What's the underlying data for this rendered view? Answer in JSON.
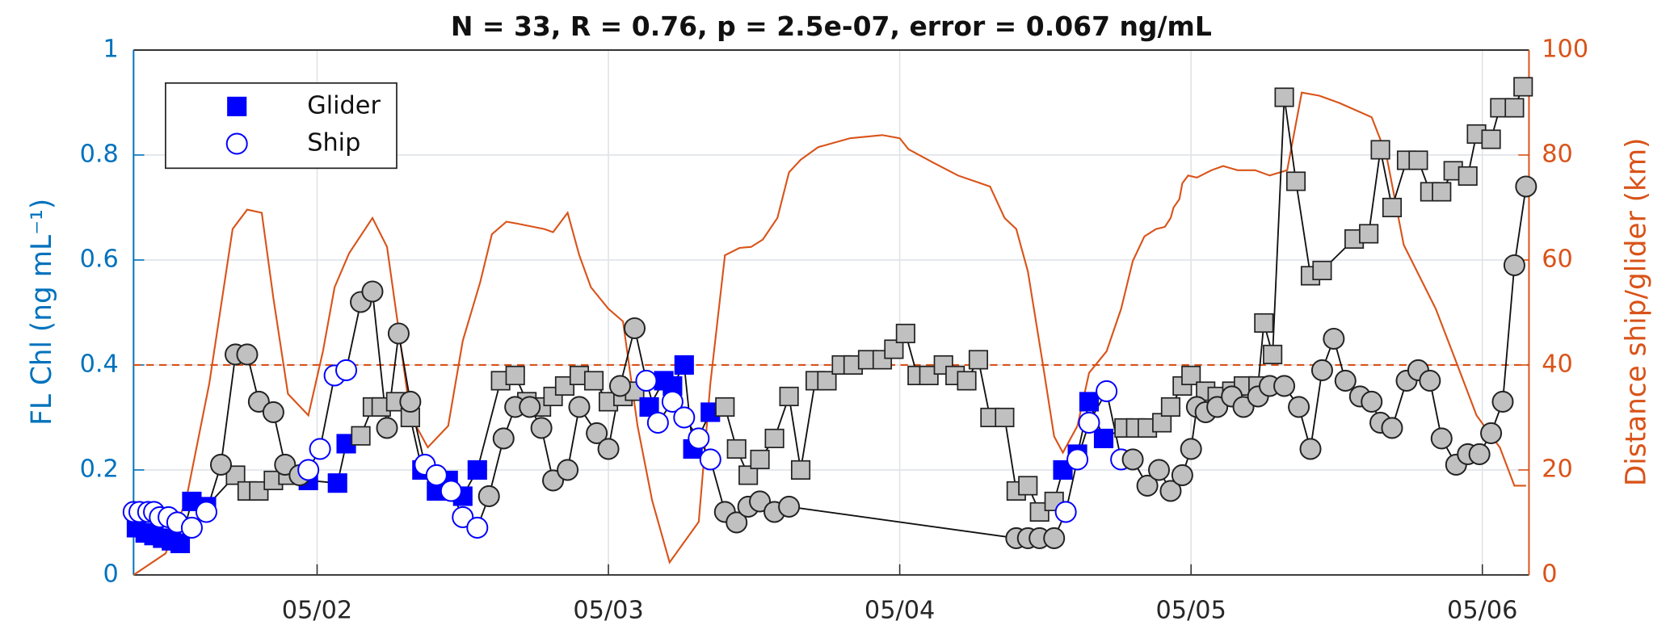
{
  "chart_data": {
    "type": "scatter",
    "title": "N = 33, R = 0.76, p = 2.5e-07, error = 0.067 ng/mL",
    "ylabel": "FL Chl (ng mL⁻¹)",
    "y2label": "Distance ship/glider (km)",
    "xlim": [
      1.37,
      6.16
    ],
    "xticks": [
      {
        "value": 2,
        "label": "05/02"
      },
      {
        "value": 3,
        "label": "05/03"
      },
      {
        "value": 4,
        "label": "05/04"
      },
      {
        "value": 5,
        "label": "05/05"
      },
      {
        "value": 6,
        "label": "05/06"
      }
    ],
    "ylim": [
      0,
      1
    ],
    "yticks": [
      0,
      0.2,
      0.4,
      0.6,
      0.8,
      1
    ],
    "y2lim": [
      0,
      100
    ],
    "y2ticks": [
      0,
      20,
      40,
      60,
      80,
      100
    ],
    "grid": true,
    "legend": "upper left",
    "reference_line": {
      "axis": "y2",
      "value": 40,
      "color": "#d95319",
      "dashed": true
    },
    "series": [
      {
        "name": "Glider",
        "color": "#0000ff",
        "marker": "square",
        "x": [
          1.38,
          1.41,
          1.44,
          1.47,
          1.5,
          1.53,
          1.57,
          1.62,
          1.72,
          1.76,
          1.8,
          1.85,
          1.9,
          1.97,
          2.07,
          2.1,
          2.15,
          2.19,
          2.22,
          2.27,
          2.32,
          2.36,
          2.41,
          2.45,
          2.5,
          2.55,
          2.63,
          2.68,
          2.72,
          2.77,
          2.81,
          2.85,
          2.9,
          2.95,
          3.0,
          3.05,
          3.09,
          3.14,
          3.19,
          3.22,
          3.26,
          3.29,
          3.35,
          3.4,
          3.44,
          3.48,
          3.52,
          3.57,
          3.62,
          3.66,
          3.71,
          3.75,
          3.8,
          3.84,
          3.89,
          3.94,
          3.98,
          4.02,
          4.06,
          4.1,
          4.15,
          4.19,
          4.23,
          4.27,
          4.31,
          4.36,
          4.4,
          4.44,
          4.48,
          4.53,
          4.56,
          4.61,
          4.65,
          4.7,
          4.77,
          4.81,
          4.85,
          4.9,
          4.93,
          4.97,
          5.0,
          5.05,
          5.09,
          5.14,
          5.18,
          5.23,
          5.25,
          5.28,
          5.32,
          5.36,
          5.41,
          5.45,
          5.56,
          5.61,
          5.65,
          5.69,
          5.74,
          5.78,
          5.82,
          5.86,
          5.9,
          5.95,
          5.98,
          6.03,
          6.06,
          6.11,
          6.14
        ],
        "values": [
          0.09,
          0.08,
          0.075,
          0.07,
          0.065,
          0.06,
          0.14,
          0.13,
          0.19,
          0.16,
          0.16,
          0.18,
          0.19,
          0.18,
          0.175,
          0.25,
          0.265,
          0.32,
          0.32,
          0.33,
          0.3,
          0.2,
          0.16,
          0.18,
          0.15,
          0.2,
          0.37,
          0.38,
          0.33,
          0.32,
          0.34,
          0.36,
          0.38,
          0.37,
          0.33,
          0.34,
          0.35,
          0.32,
          0.37,
          0.36,
          0.4,
          0.24,
          0.31,
          0.32,
          0.24,
          0.19,
          0.22,
          0.26,
          0.34,
          0.2,
          0.37,
          0.37,
          0.4,
          0.4,
          0.41,
          0.41,
          0.43,
          0.46,
          0.38,
          0.38,
          0.4,
          0.38,
          0.37,
          0.41,
          0.3,
          0.3,
          0.16,
          0.17,
          0.12,
          0.14,
          0.2,
          0.23,
          0.33,
          0.26,
          0.28,
          0.28,
          0.28,
          0.29,
          0.32,
          0.36,
          0.38,
          0.35,
          0.34,
          0.35,
          0.36,
          0.36,
          0.48,
          0.42,
          0.91,
          0.75,
          0.57,
          0.58,
          0.64,
          0.65,
          0.81,
          0.7,
          0.79,
          0.79,
          0.73,
          0.73,
          0.77,
          0.76,
          0.84,
          0.83,
          0.89,
          0.89,
          0.93
        ],
        "matched": [
          true,
          true,
          true,
          true,
          true,
          true,
          true,
          true,
          false,
          false,
          false,
          false,
          false,
          true,
          true,
          true,
          false,
          false,
          false,
          false,
          false,
          true,
          true,
          true,
          true,
          true,
          false,
          false,
          false,
          false,
          false,
          false,
          false,
          false,
          false,
          false,
          false,
          true,
          true,
          true,
          true,
          true,
          true,
          false,
          false,
          false,
          false,
          false,
          false,
          false,
          false,
          false,
          false,
          false,
          false,
          false,
          false,
          false,
          false,
          false,
          false,
          false,
          false,
          false,
          false,
          false,
          false,
          false,
          false,
          false,
          true,
          true,
          true,
          true,
          false,
          false,
          false,
          false,
          false,
          false,
          false,
          false,
          false,
          false,
          false,
          false,
          false,
          false,
          false,
          false,
          false,
          false,
          false,
          false,
          false,
          false,
          false,
          false,
          false,
          false,
          false,
          false,
          false,
          false,
          false,
          false,
          false
        ]
      },
      {
        "name": "Ship",
        "color": "#0000ff",
        "marker": "circle",
        "x": [
          1.37,
          1.39,
          1.42,
          1.44,
          1.46,
          1.49,
          1.52,
          1.57,
          1.62,
          1.67,
          1.72,
          1.76,
          1.8,
          1.85,
          1.89,
          1.94,
          1.97,
          2.01,
          2.06,
          2.1,
          2.15,
          2.19,
          2.24,
          2.28,
          2.32,
          2.37,
          2.41,
          2.46,
          2.5,
          2.55,
          2.59,
          2.64,
          2.68,
          2.73,
          2.77,
          2.81,
          2.86,
          2.9,
          2.96,
          3.0,
          3.04,
          3.09,
          3.13,
          3.17,
          3.22,
          3.26,
          3.31,
          3.35,
          3.4,
          3.44,
          3.48,
          3.52,
          3.57,
          3.62,
          4.4,
          4.44,
          4.48,
          4.53,
          4.57,
          4.61,
          4.65,
          4.71,
          4.76,
          4.8,
          4.85,
          4.89,
          4.93,
          4.97,
          5.0,
          5.02,
          5.05,
          5.09,
          5.14,
          5.18,
          5.23,
          5.27,
          5.32,
          5.37,
          5.41,
          5.45,
          5.49,
          5.53,
          5.58,
          5.62,
          5.65,
          5.69,
          5.74,
          5.78,
          5.82,
          5.86,
          5.91,
          5.95,
          5.99,
          6.03,
          6.07,
          6.11,
          6.15
        ],
        "values": [
          0.12,
          0.12,
          0.12,
          0.12,
          0.11,
          0.11,
          0.1,
          0.09,
          0.12,
          0.21,
          0.42,
          0.42,
          0.33,
          0.31,
          0.21,
          0.19,
          0.2,
          0.24,
          0.38,
          0.39,
          0.52,
          0.54,
          0.28,
          0.46,
          0.33,
          0.21,
          0.19,
          0.16,
          0.11,
          0.09,
          0.15,
          0.26,
          0.32,
          0.32,
          0.28,
          0.18,
          0.2,
          0.32,
          0.27,
          0.24,
          0.36,
          0.47,
          0.37,
          0.29,
          0.33,
          0.3,
          0.26,
          0.22,
          0.12,
          0.1,
          0.13,
          0.14,
          0.12,
          0.13,
          0.07,
          0.07,
          0.07,
          0.07,
          0.12,
          0.22,
          0.29,
          0.35,
          0.22,
          0.22,
          0.17,
          0.2,
          0.16,
          0.19,
          0.24,
          0.32,
          0.31,
          0.32,
          0.34,
          0.32,
          0.34,
          0.36,
          0.36,
          0.32,
          0.24,
          0.39,
          0.45,
          0.37,
          0.34,
          0.33,
          0.29,
          0.28,
          0.37,
          0.39,
          0.37,
          0.26,
          0.21,
          0.23,
          0.23,
          0.27,
          0.33,
          0.59,
          0.74
        ],
        "matched": [
          true,
          true,
          true,
          true,
          true,
          true,
          true,
          true,
          true,
          false,
          false,
          false,
          false,
          false,
          false,
          false,
          true,
          true,
          true,
          true,
          false,
          false,
          false,
          false,
          false,
          true,
          true,
          true,
          true,
          true,
          false,
          false,
          false,
          false,
          false,
          false,
          false,
          false,
          false,
          false,
          false,
          false,
          true,
          true,
          true,
          true,
          true,
          true,
          false,
          false,
          false,
          false,
          false,
          false,
          false,
          false,
          false,
          false,
          true,
          true,
          true,
          true,
          true,
          false,
          false,
          false,
          false,
          false,
          false,
          false,
          false,
          false,
          false,
          false,
          false,
          false,
          false,
          false,
          false,
          false,
          false,
          false,
          false,
          false,
          false,
          false,
          false,
          false,
          false,
          false,
          false,
          false,
          false,
          false,
          false,
          false,
          false
        ]
      },
      {
        "color": "#d95319",
        "axis": "y2",
        "marker": "none",
        "x": [
          1.37,
          1.48,
          1.55,
          1.63,
          1.71,
          1.76,
          1.81,
          1.85,
          1.9,
          1.97,
          2.02,
          2.06,
          2.11,
          2.19,
          2.24,
          2.28,
          2.32,
          2.38,
          2.45,
          2.5,
          2.56,
          2.6,
          2.65,
          2.69,
          2.78,
          2.81,
          2.86,
          2.9,
          2.94,
          3.0,
          3.05,
          3.1,
          3.15,
          3.21,
          3.31,
          3.35,
          3.4,
          3.45,
          3.49,
          3.53,
          3.58,
          3.62,
          3.66,
          3.72,
          3.83,
          3.94,
          4.0,
          4.03,
          4.11,
          4.2,
          4.31,
          4.36,
          4.4,
          4.44,
          4.49,
          4.53,
          4.56,
          4.61,
          4.65,
          4.71,
          4.76,
          4.8,
          4.84,
          4.88,
          4.91,
          4.93,
          4.94,
          4.96,
          4.97,
          4.99,
          5.02,
          5.07,
          5.11,
          5.16,
          5.22,
          5.27,
          5.33,
          5.38,
          5.44,
          5.51,
          5.62,
          5.67,
          5.73,
          5.84,
          5.91,
          5.98,
          6.06,
          6.11,
          6.15
        ],
        "values": [
          0,
          4.1,
          14.2,
          36.5,
          65.9,
          69.6,
          69.0,
          52.7,
          34.5,
          30.4,
          42.6,
          54.8,
          61.3,
          68.0,
          62.5,
          46.7,
          30.4,
          24.3,
          28.4,
          44.6,
          55.8,
          64.9,
          67.3,
          66.9,
          65.9,
          65.3,
          69.0,
          60.9,
          54.8,
          50.7,
          48.3,
          28.4,
          14.2,
          2.4,
          10.1,
          36.5,
          60.9,
          62.3,
          62.5,
          63.9,
          68.0,
          76.7,
          79.1,
          81.5,
          83.2,
          83.8,
          83.2,
          81.1,
          78.7,
          76.1,
          74.0,
          68.0,
          65.9,
          57.8,
          40.6,
          26.4,
          23.3,
          28.4,
          38.5,
          42.6,
          50.7,
          59.8,
          64.5,
          65.9,
          66.3,
          68.0,
          70.0,
          71.6,
          74.6,
          76.1,
          75.7,
          77.1,
          77.9,
          77.1,
          77.1,
          76.1,
          77.1,
          91.9,
          91.3,
          89.9,
          87.2,
          80.1,
          62.9,
          50.7,
          40.6,
          30.4,
          24.3,
          17.0,
          17.0
        ]
      }
    ]
  }
}
